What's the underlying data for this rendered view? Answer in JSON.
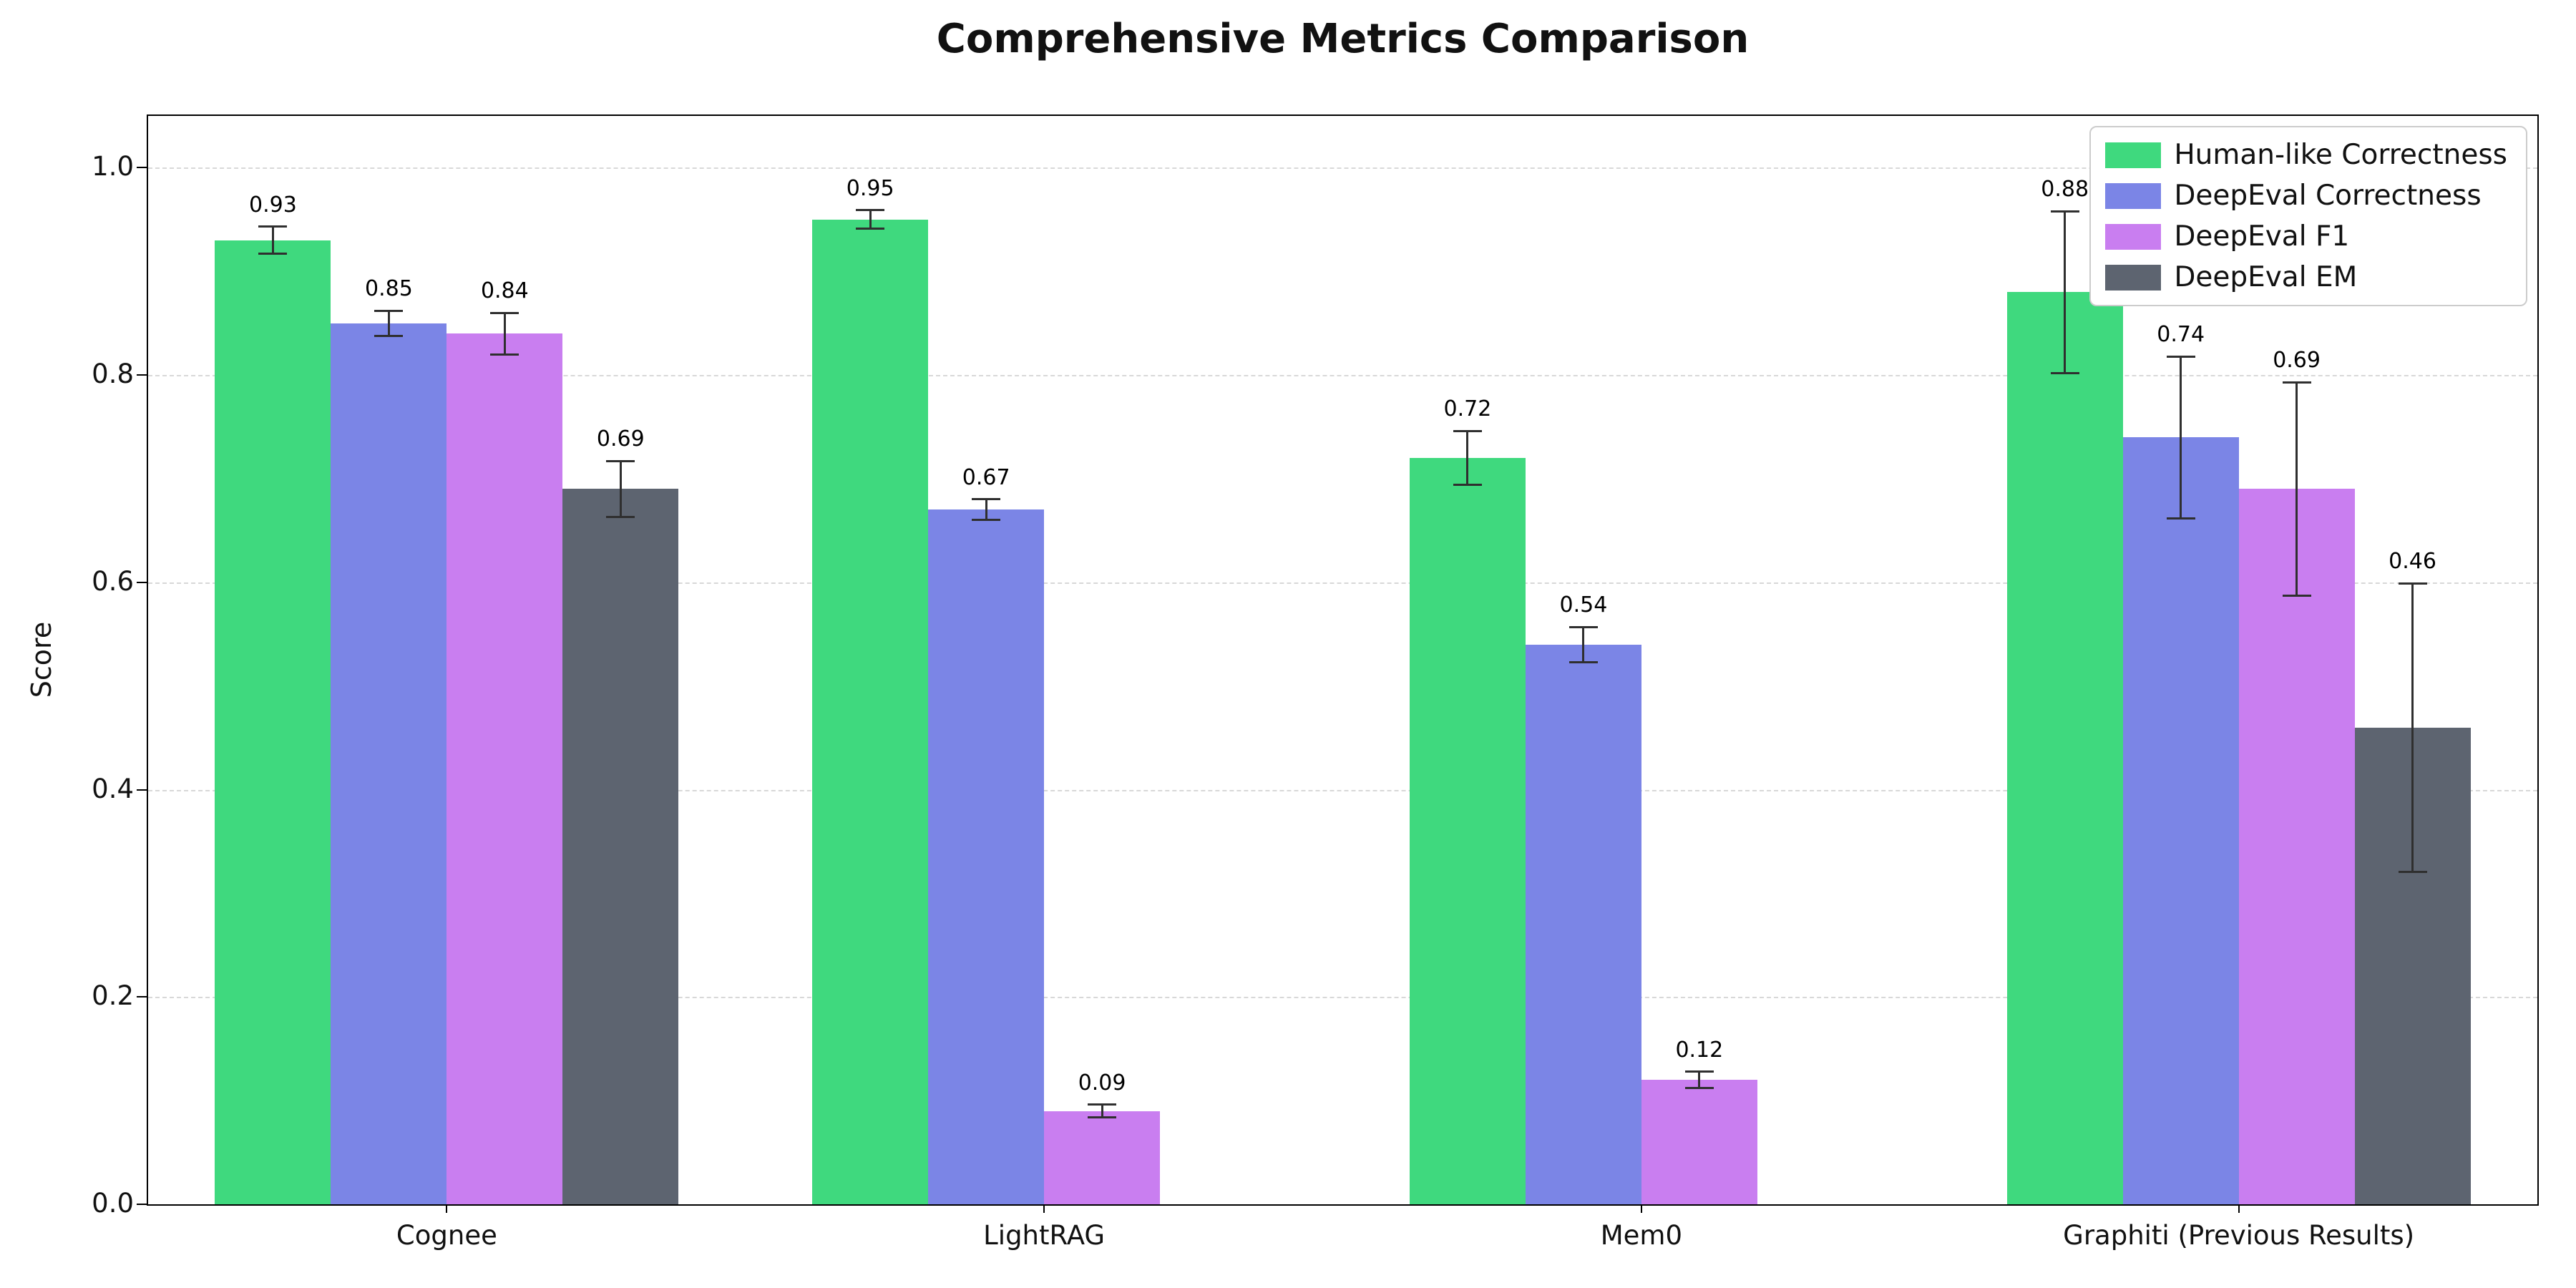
{
  "chart_data": {
    "type": "bar",
    "title": "Comprehensive Metrics Comparison",
    "xlabel": "",
    "ylabel": "Score",
    "ylim": [
      0,
      1.05
    ],
    "yticks": [
      0.0,
      0.2,
      0.4,
      0.6,
      0.8,
      1.0
    ],
    "grid": "horizontal-dashed",
    "legend_position": "upper right",
    "categories": [
      "Cognee",
      "LightRAG",
      "Mem0",
      "Graphiti (Previous Results)"
    ],
    "series": [
      {
        "name": "Human-like Correctness",
        "color": "#3fd97e",
        "values": [
          0.93,
          0.95,
          0.72,
          0.88
        ],
        "errors": [
          0.013,
          0.009,
          0.026,
          0.078
        ],
        "labels": [
          "0.93",
          "0.95",
          "0.72",
          "0.88"
        ]
      },
      {
        "name": "DeepEval Correctness",
        "color": "#7b85e6",
        "values": [
          0.85,
          0.67,
          0.54,
          0.74
        ],
        "errors": [
          0.012,
          0.01,
          0.017,
          0.078
        ],
        "labels": [
          "0.85",
          "0.67",
          "0.54",
          "0.74"
        ]
      },
      {
        "name": "DeepEval F1",
        "color": "#c97ef0",
        "values": [
          0.84,
          0.09,
          0.12,
          0.69
        ],
        "errors": [
          0.02,
          0.006,
          0.008,
          0.103
        ],
        "labels": [
          "0.84",
          "0.09",
          "0.12",
          "0.69"
        ]
      },
      {
        "name": "DeepEval EM",
        "color": "#5d6470",
        "values": [
          0.69,
          0.0,
          0.0,
          0.46
        ],
        "errors": [
          0.027,
          0,
          0,
          0.139
        ],
        "labels": [
          "0.69",
          null,
          null,
          "0.46"
        ]
      }
    ],
    "error_bar_color": "#2f2f2f",
    "axis_color": "#000000",
    "grid_color": "#d8d8d8"
  }
}
